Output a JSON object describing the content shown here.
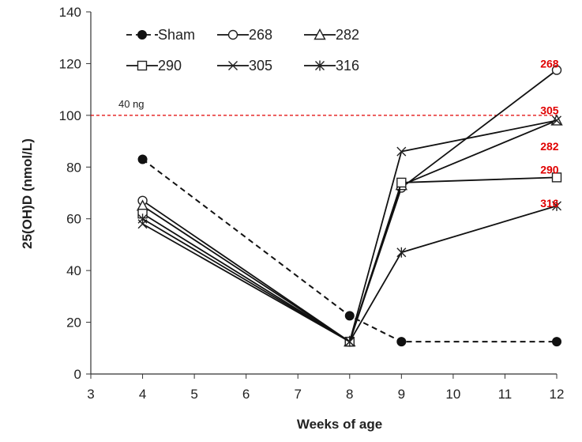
{
  "chart_data": {
    "type": "line",
    "title": "",
    "xlabel": "Weeks of age",
    "ylabel": "25(OH)D (nmol/L)",
    "xlim": [
      3,
      12
    ],
    "ylim": [
      0,
      140
    ],
    "x_ticks": [
      3,
      4,
      5,
      6,
      7,
      8,
      9,
      10,
      11,
      12
    ],
    "y_ticks": [
      0,
      20,
      40,
      60,
      80,
      100,
      120,
      140
    ],
    "grid": false,
    "legend_position": "top-left",
    "reference_line": {
      "y": 100,
      "label": "40 ng",
      "color": "#e00000",
      "style": "dashed"
    },
    "series": [
      {
        "name": "Sham",
        "marker": "filled-circle",
        "line": "dashed",
        "x": [
          4,
          8,
          9,
          12
        ],
        "y": [
          83,
          22.5,
          12.5,
          12.5
        ]
      },
      {
        "name": "268",
        "marker": "open-circle",
        "line": "solid",
        "x": [
          4,
          8,
          9,
          12
        ],
        "y": [
          67,
          12.5,
          72,
          117.5
        ]
      },
      {
        "name": "282",
        "marker": "triangle",
        "line": "solid",
        "x": [
          4,
          8,
          9,
          12
        ],
        "y": [
          65,
          12.5,
          73,
          98
        ]
      },
      {
        "name": "290",
        "marker": "square",
        "line": "solid",
        "x": [
          4,
          8,
          9,
          12
        ],
        "y": [
          62,
          12.5,
          74,
          76
        ]
      },
      {
        "name": "305",
        "marker": "x",
        "line": "solid",
        "x": [
          4,
          8,
          9,
          12
        ],
        "y": [
          58,
          12.5,
          86,
          98
        ]
      },
      {
        "name": "316",
        "marker": "asterisk",
        "line": "solid",
        "x": [
          4,
          8,
          9,
          12
        ],
        "y": [
          60,
          12.5,
          47,
          65
        ]
      }
    ],
    "annotations": [
      {
        "text": "268",
        "color": "#e00000",
        "x": 11.5,
        "y": 120
      },
      {
        "text": "305",
        "color": "#e00000",
        "x": 11.5,
        "y": 102
      },
      {
        "text": "282",
        "color": "#e00000",
        "x": 11.5,
        "y": 88
      },
      {
        "text": "290",
        "color": "#e00000",
        "x": 11.5,
        "y": 79
      },
      {
        "text": "316",
        "color": "#e00000",
        "x": 11.5,
        "y": 66
      }
    ]
  }
}
